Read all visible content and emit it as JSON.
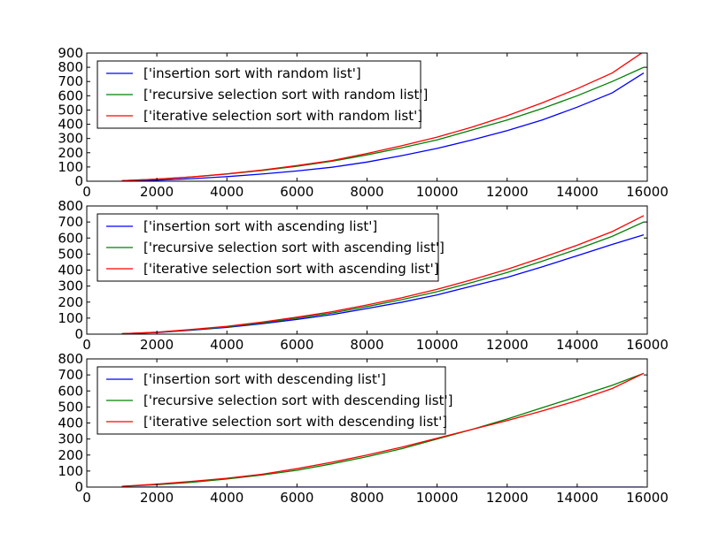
{
  "chart_data": [
    {
      "type": "line",
      "title": "",
      "xlabel": "",
      "ylabel": "",
      "xlim": [
        0,
        16000
      ],
      "ylim": [
        0,
        900
      ],
      "xticks": [
        "0",
        "2000",
        "4000",
        "6000",
        "8000",
        "10000",
        "12000",
        "14000",
        "16000"
      ],
      "yticks": [
        "0",
        "100",
        "200",
        "300",
        "400",
        "500",
        "600",
        "700",
        "800",
        "900"
      ],
      "legend_position": "upper-left",
      "grid": false,
      "x": [
        1000,
        2000,
        3000,
        4000,
        5000,
        6000,
        7000,
        8000,
        9000,
        10000,
        11000,
        12000,
        13000,
        14000,
        15000,
        15900
      ],
      "series": [
        {
          "name": "['insertion sort with random list']",
          "color": "#0000ff",
          "values": [
            2,
            7,
            18,
            32,
            50,
            72,
            98,
            135,
            180,
            230,
            290,
            355,
            430,
            520,
            620,
            760
          ]
        },
        {
          "name": "['recursive selection sort with random list']",
          "color": "#008000",
          "values": [
            4,
            15,
            30,
            50,
            75,
            105,
            140,
            185,
            235,
            290,
            360,
            430,
            510,
            600,
            700,
            800
          ]
        },
        {
          "name": "['iterative selection sort with random list']",
          "color": "#ff0000",
          "values": [
            4,
            15,
            30,
            52,
            78,
            110,
            145,
            195,
            250,
            310,
            380,
            460,
            550,
            650,
            760,
            910
          ]
        }
      ]
    },
    {
      "type": "line",
      "title": "",
      "xlabel": "",
      "ylabel": "",
      "xlim": [
        0,
        16000
      ],
      "ylim": [
        0,
        800
      ],
      "xticks": [
        "0",
        "2000",
        "4000",
        "6000",
        "8000",
        "10000",
        "12000",
        "14000",
        "16000"
      ],
      "yticks": [
        "0",
        "100",
        "200",
        "300",
        "400",
        "500",
        "600",
        "700",
        "800"
      ],
      "legend_position": "upper-left",
      "grid": false,
      "x": [
        1000,
        2000,
        3000,
        4000,
        5000,
        6000,
        7000,
        8000,
        9000,
        10000,
        11000,
        12000,
        13000,
        14000,
        15000,
        15900
      ],
      "series": [
        {
          "name": "['insertion sort with ascending list']",
          "color": "#0000ff",
          "values": [
            3,
            10,
            25,
            42,
            65,
            92,
            122,
            160,
            200,
            245,
            300,
            355,
            420,
            490,
            560,
            620
          ]
        },
        {
          "name": "['recursive selection sort with ascending list']",
          "color": "#008000",
          "values": [
            3,
            11,
            27,
            46,
            70,
            100,
            132,
            172,
            216,
            265,
            323,
            385,
            455,
            530,
            610,
            700
          ]
        },
        {
          "name": "['iterative selection sort with ascending list']",
          "color": "#ff0000",
          "values": [
            3,
            12,
            29,
            49,
            75,
            106,
            140,
            182,
            228,
            280,
            340,
            405,
            478,
            555,
            640,
            740
          ]
        }
      ]
    },
    {
      "type": "line",
      "title": "",
      "xlabel": "",
      "ylabel": "",
      "xlim": [
        0,
        16000
      ],
      "ylim": [
        0,
        800
      ],
      "xticks": [
        "0",
        "2000",
        "4000",
        "6000",
        "8000",
        "10000",
        "12000",
        "14000",
        "16000"
      ],
      "yticks": [
        "0",
        "100",
        "200",
        "300",
        "400",
        "500",
        "600",
        "700",
        "800"
      ],
      "legend_position": "upper-left",
      "grid": false,
      "x": [
        1000,
        2000,
        3000,
        4000,
        5000,
        6000,
        7000,
        8000,
        9000,
        10000,
        11000,
        12000,
        13000,
        14000,
        15000,
        15900
      ],
      "series": [
        {
          "name": "['insertion sort with descending list']",
          "color": "#0000ff",
          "values": [
            0,
            0,
            0,
            0,
            0,
            0,
            0,
            0,
            0,
            0,
            0,
            0,
            0,
            0,
            0,
            0
          ]
        },
        {
          "name": "['recursive selection sort with descending list']",
          "color": "#008000",
          "values": [
            5,
            15,
            30,
            50,
            75,
            105,
            145,
            190,
            240,
            300,
            360,
            425,
            495,
            565,
            635,
            710
          ]
        },
        {
          "name": "['iterative selection sort with descending list']",
          "color": "#ff0000",
          "values": [
            5,
            18,
            36,
            55,
            80,
            115,
            155,
            200,
            250,
            305,
            360,
            415,
            475,
            540,
            615,
            710
          ]
        }
      ]
    }
  ]
}
